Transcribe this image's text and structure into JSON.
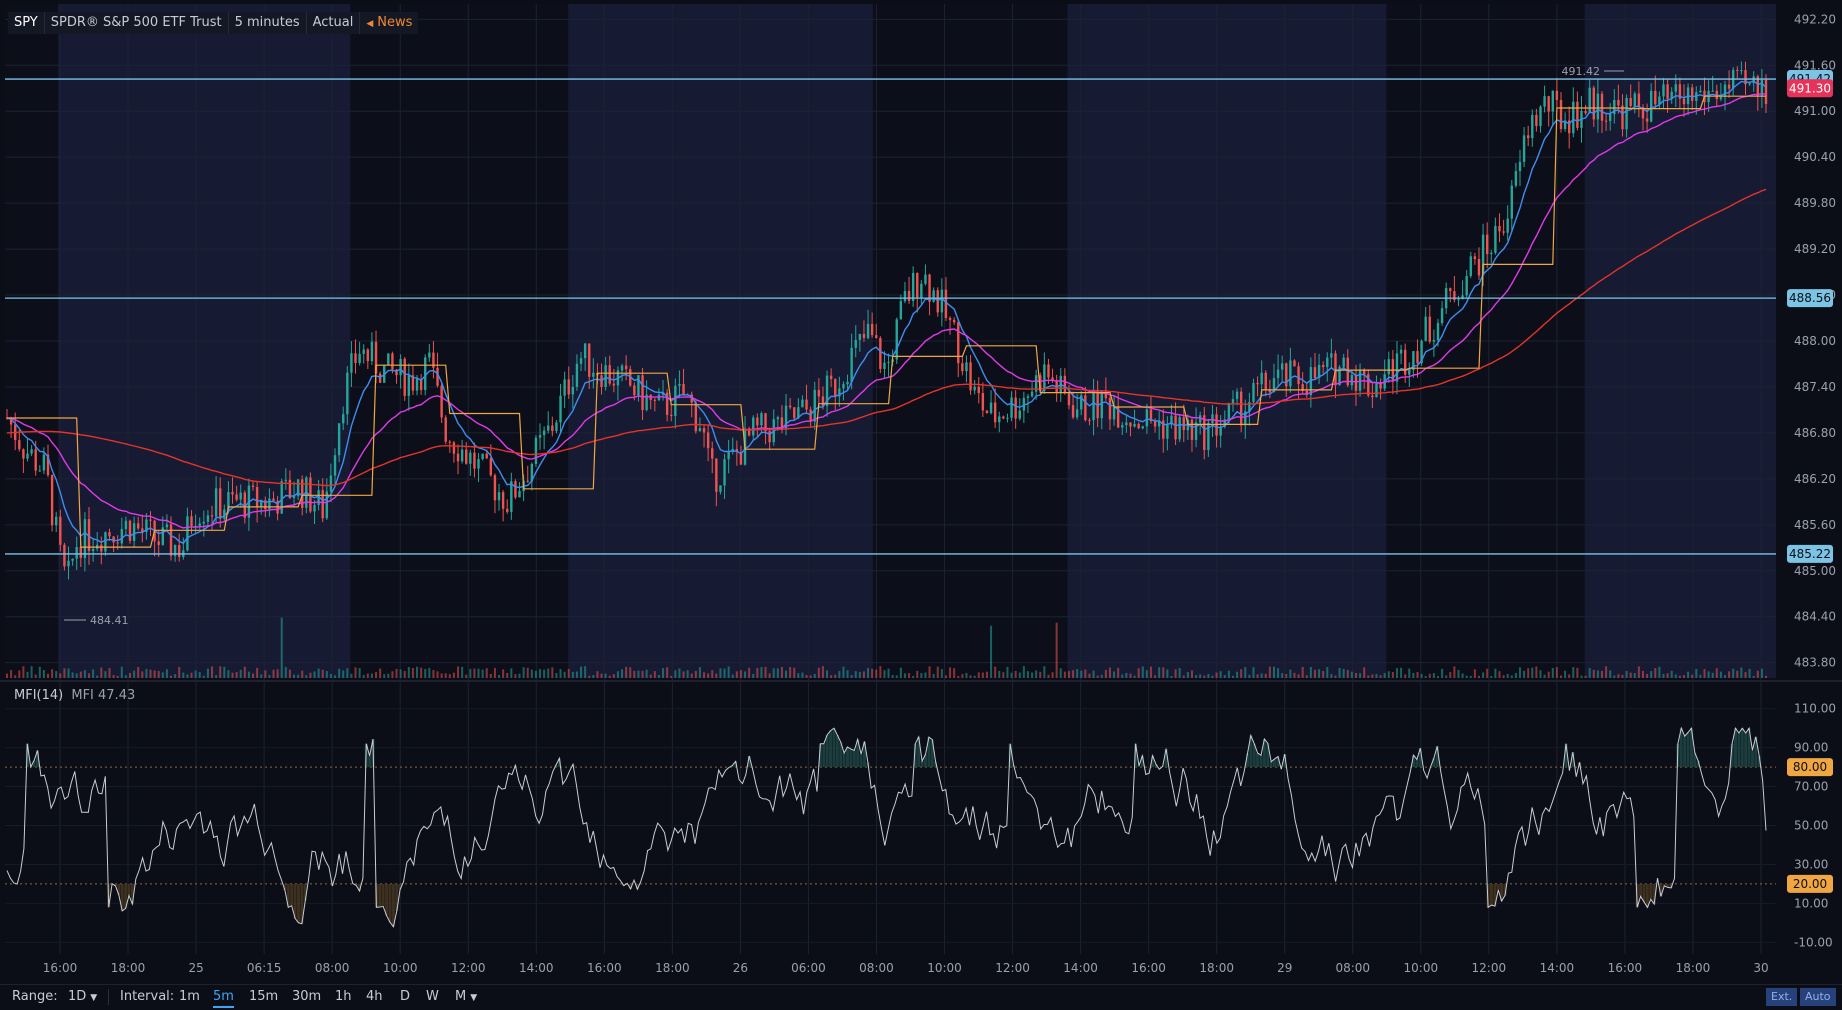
{
  "header": {
    "symbol": "SPY",
    "name": "SPDR® S&P 500 ETF Trust",
    "interval_label": "5 minutes",
    "mode": "Actual",
    "news_label": "News"
  },
  "indicator": {
    "title": "MFI(14)",
    "value_label": "MFI 47.43"
  },
  "bottom_bar": {
    "range_label": "Range:",
    "range_value": "1D",
    "interval_label": "Interval:",
    "intervals": [
      "1m",
      "5m",
      "15m",
      "30m",
      "1h",
      "4h",
      "D",
      "W",
      "M"
    ],
    "selected_interval": "5m",
    "ext_label": "Ext.",
    "auto_label": "Auto"
  },
  "colors": {
    "bull": "#26a69a",
    "bear": "#ef5350",
    "hline": "#7cc4e6",
    "ma_fast": "#3d8ef0",
    "ma_mid": "#e03ae8",
    "ma_slow": "#e5332a",
    "vwap": "#f0a742",
    "mfi": "#c9ccd4",
    "current_price": "#e6335a"
  },
  "chart_data": [
    {
      "type": "candlestick",
      "symbol": "SPY",
      "y_ticks": [
        "492.20",
        "491.60",
        "491.00",
        "490.40",
        "489.80",
        "489.20",
        "488.60",
        "488.00",
        "487.40",
        "486.80",
        "486.20",
        "485.60",
        "485.00",
        "484.40",
        "483.80"
      ],
      "y_range": [
        483.6,
        492.4
      ],
      "x_ticks": [
        "16:00",
        "18:00",
        "25",
        "06:15",
        "08:00",
        "10:00",
        "12:00",
        "14:00",
        "16:00",
        "18:00",
        "26",
        "06:00",
        "08:00",
        "10:00",
        "12:00",
        "14:00",
        "16:00",
        "18:00",
        "29",
        "08:00",
        "10:00",
        "12:00",
        "14:00",
        "16:00",
        "18:00",
        "30"
      ],
      "horizontal_lines": [
        "491.42",
        "488.56",
        "485.22"
      ],
      "current_price": "491.30",
      "high_marker": "491.42",
      "low_marker": "484.41",
      "price_path": [
        [
          0,
          487.0
        ],
        [
          0.01,
          486.6
        ],
        [
          0.022,
          486.3
        ],
        [
          0.03,
          485.2
        ],
        [
          0.034,
          484.8
        ],
        [
          0.04,
          485.4
        ],
        [
          0.055,
          485.5
        ],
        [
          0.07,
          485.6
        ],
        [
          0.085,
          485.4
        ],
        [
          0.1,
          485.3
        ],
        [
          0.106,
          485.8
        ],
        [
          0.13,
          485.9
        ],
        [
          0.15,
          485.9
        ],
        [
          0.165,
          486.1
        ],
        [
          0.18,
          485.8
        ],
        [
          0.19,
          487.2
        ],
        [
          0.2,
          487.9
        ],
        [
          0.215,
          487.6
        ],
        [
          0.23,
          487.5
        ],
        [
          0.24,
          487.7
        ],
        [
          0.25,
          486.8
        ],
        [
          0.27,
          486.3
        ],
        [
          0.285,
          485.9
        ],
        [
          0.295,
          486.3
        ],
        [
          0.31,
          486.9
        ],
        [
          0.325,
          487.8
        ],
        [
          0.34,
          487.6
        ],
        [
          0.355,
          487.4
        ],
        [
          0.37,
          487.1
        ],
        [
          0.385,
          487.3
        ],
        [
          0.395,
          486.9
        ],
        [
          0.4,
          486.2
        ],
        [
          0.41,
          486.4
        ],
        [
          0.425,
          486.8
        ],
        [
          0.44,
          486.9
        ],
        [
          0.455,
          487.1
        ],
        [
          0.47,
          487.4
        ],
        [
          0.48,
          487.8
        ],
        [
          0.49,
          488.1
        ],
        [
          0.5,
          487.6
        ],
        [
          0.51,
          488.5
        ],
        [
          0.52,
          488.9
        ],
        [
          0.53,
          488.5
        ],
        [
          0.54,
          488.0
        ],
        [
          0.55,
          487.3
        ],
        [
          0.56,
          487.0
        ],
        [
          0.575,
          487.2
        ],
        [
          0.59,
          487.6
        ],
        [
          0.6,
          487.3
        ],
        [
          0.61,
          487.1
        ],
        [
          0.625,
          487.2
        ],
        [
          0.64,
          487.0
        ],
        [
          0.66,
          486.9
        ],
        [
          0.68,
          486.8
        ],
        [
          0.7,
          487.1
        ],
        [
          0.72,
          487.5
        ],
        [
          0.74,
          487.5
        ],
        [
          0.76,
          487.7
        ],
        [
          0.775,
          487.4
        ],
        [
          0.79,
          487.7
        ],
        [
          0.8,
          487.9
        ],
        [
          0.81,
          488.2
        ],
        [
          0.83,
          488.9
        ],
        [
          0.845,
          489.3
        ],
        [
          0.855,
          489.8
        ],
        [
          0.865,
          490.8
        ],
        [
          0.875,
          491.1
        ],
        [
          0.885,
          490.9
        ],
        [
          0.9,
          491.1
        ],
        [
          0.92,
          491.0
        ],
        [
          0.94,
          491.1
        ],
        [
          0.96,
          491.2
        ],
        [
          0.98,
          491.3
        ],
        [
          1.0,
          491.3
        ]
      ]
    },
    {
      "type": "line",
      "name": "MFI(14)",
      "y_ticks": [
        "110.00",
        "90.00",
        "70.00",
        "50.00",
        "30.00",
        "10.00",
        "-10.00"
      ],
      "y_range": [
        -16,
        116
      ],
      "overbought": "80.00",
      "oversold": "20.00",
      "last_value": 47.43
    }
  ]
}
